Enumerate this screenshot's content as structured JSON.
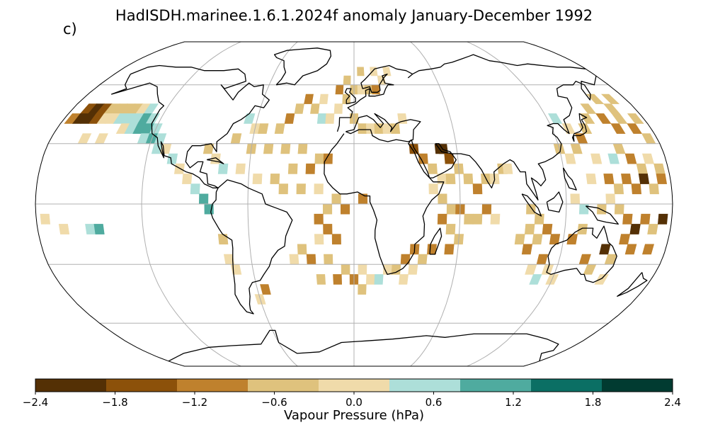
{
  "title": "HadISDH.marinee.1.6.1.2024f anomaly January-December 1992",
  "panel_label": "c)",
  "map": {
    "projection": "Robinson",
    "graticule_longitudes": [
      -180,
      -120,
      -60,
      0,
      60,
      120,
      180
    ],
    "graticule_latitudes": [
      -90,
      -60,
      -30,
      0,
      30,
      60,
      90
    ],
    "grid_cell_deg": 5,
    "cells": [
      [
        -170,
        47.5,
        -1.6
      ],
      [
        -165,
        47.5,
        -1.9
      ],
      [
        -160,
        47.5,
        -1.6
      ],
      [
        -155,
        47.5,
        -0.4
      ],
      [
        -150,
        47.5,
        -0.4
      ],
      [
        -145,
        47.5,
        -0.4
      ],
      [
        -140,
        47.5,
        -0.4
      ],
      [
        -135,
        47.5,
        0.4
      ],
      [
        -130,
        47.5,
        0.8
      ],
      [
        -175,
        42.5,
        -0.9
      ],
      [
        -170,
        42.5,
        -1.9
      ],
      [
        -165,
        42.5,
        -1.9
      ],
      [
        -160,
        42.5,
        -1.4
      ],
      [
        -155,
        42.5,
        0.4
      ],
      [
        -150,
        42.5,
        0.4
      ],
      [
        -145,
        42.5,
        0.9
      ],
      [
        -140,
        42.5,
        1.0
      ],
      [
        -135,
        42.5,
        0.8
      ],
      [
        -130,
        42.5,
        1.3
      ],
      [
        -125,
        42.5,
        1.0
      ],
      [
        -140,
        37.5,
        0.4
      ],
      [
        -135,
        37.5,
        0.9
      ],
      [
        -130,
        37.5,
        1.4
      ],
      [
        -125,
        37.5,
        1.3
      ],
      [
        -120,
        37.5,
        0.9
      ],
      [
        -160,
        32.5,
        0.4
      ],
      [
        -150,
        32.5,
        0.4
      ],
      [
        -125,
        32.5,
        1.0
      ],
      [
        -120,
        32.5,
        1.4
      ],
      [
        -115,
        32.5,
        1.0
      ],
      [
        -115,
        27.5,
        0.8
      ],
      [
        -110,
        27.5,
        0.4
      ],
      [
        -105,
        22.5,
        0.9
      ],
      [
        -100,
        17.5,
        0.4
      ],
      [
        -95,
        12.5,
        0.4
      ],
      [
        -90,
        7.5,
        0.9
      ],
      [
        -85,
        2.5,
        1.3
      ],
      [
        -82,
        -2.5,
        1.4
      ],
      [
        -175,
        -7.5,
        0.4
      ],
      [
        -165,
        -12.5,
        0.4
      ],
      [
        -150,
        -12.5,
        0.9
      ],
      [
        -145,
        -12.5,
        1.3
      ],
      [
        -75,
        -17.5,
        -0.4
      ],
      [
        -73,
        -27.5,
        0.4
      ],
      [
        -70,
        -32.5,
        0.4
      ],
      [
        -60,
        -47.5,
        0.4
      ],
      [
        -55,
        -42.5,
        -0.9
      ],
      [
        -65,
        42.5,
        0.8
      ],
      [
        -60,
        37.5,
        0.4
      ],
      [
        -55,
        37.5,
        -0.4
      ],
      [
        -45,
        37.5,
        -0.4
      ],
      [
        -40,
        42.5,
        -0.9
      ],
      [
        -35,
        47.5,
        -0.4
      ],
      [
        -30,
        52.5,
        -0.9
      ],
      [
        -25,
        47.5,
        -0.4
      ],
      [
        -20,
        52.5,
        0.4
      ],
      [
        -20,
        42.5,
        0.8
      ],
      [
        -15,
        42.5,
        0.4
      ],
      [
        -10,
        47.5,
        0.4
      ],
      [
        -10,
        57.5,
        -0.9
      ],
      [
        -5,
        52.5,
        -0.4
      ],
      [
        -70,
        32.5,
        -0.4
      ],
      [
        -60,
        27.5,
        -0.4
      ],
      [
        -50,
        27.5,
        -0.4
      ],
      [
        -40,
        27.5,
        -0.4
      ],
      [
        -30,
        27.5,
        -0.4
      ],
      [
        -20,
        22.5,
        -0.4
      ],
      [
        -15,
        22.5,
        -1.0
      ],
      [
        -25,
        17.5,
        -1.0
      ],
      [
        -35,
        17.5,
        -0.4
      ],
      [
        -45,
        12.5,
        -0.4
      ],
      [
        -55,
        12.5,
        0.4
      ],
      [
        -65,
        17.5,
        0.4
      ],
      [
        -75,
        17.5,
        0.8
      ],
      [
        -80,
        22.5,
        0.4
      ],
      [
        -85,
        27.5,
        -0.4
      ],
      [
        -40,
        7.5,
        -0.4
      ],
      [
        -30,
        7.5,
        -0.4
      ],
      [
        -20,
        7.5,
        0.4
      ],
      [
        -10,
        2.5,
        -0.4
      ],
      [
        -5,
        -2.5,
        -1.0
      ],
      [
        5,
        2.5,
        -1.0
      ],
      [
        -15,
        -2.5,
        -0.4
      ],
      [
        -20,
        -7.5,
        -1.0
      ],
      [
        -15,
        -12.5,
        -1.0
      ],
      [
        -10,
        -17.5,
        -1.0
      ],
      [
        -20,
        -17.5,
        0.4
      ],
      [
        -30,
        -22.5,
        -0.4
      ],
      [
        -35,
        -27.5,
        0.4
      ],
      [
        -25,
        -27.5,
        -1.0
      ],
      [
        -15,
        -27.5,
        -0.4
      ],
      [
        -5,
        -32.5,
        -0.4
      ],
      [
        0,
        -37.5,
        -1.0
      ],
      [
        5,
        -32.5,
        0.4
      ],
      [
        -20,
        -37.5,
        -0.4
      ],
      [
        -10,
        -37.5,
        -1.0
      ],
      [
        10,
        -37.5,
        0.4
      ],
      [
        15,
        -37.5,
        0.8
      ],
      [
        20,
        -32.5,
        0.4
      ],
      [
        25,
        -32.5,
        -0.4
      ],
      [
        30,
        -27.5,
        -1.0
      ],
      [
        35,
        -22.5,
        -1.0
      ],
      [
        30,
        -37.5,
        0.4
      ],
      [
        5,
        -42.5,
        -0.4
      ],
      [
        0,
        57.5,
        -0.4
      ],
      [
        5,
        57.5,
        0.4
      ],
      [
        10,
        57.5,
        -0.4
      ],
      [
        15,
        57.5,
        -1.0
      ],
      [
        20,
        62.5,
        0.4
      ],
      [
        15,
        67.5,
        0.4
      ],
      [
        5,
        67.5,
        -0.4
      ],
      [
        -5,
        62.5,
        -0.4
      ],
      [
        25,
        67.5,
        0.4
      ],
      [
        0,
        42.5,
        -0.4
      ],
      [
        5,
        37.5,
        -0.4
      ],
      [
        10,
        37.5,
        0.4
      ],
      [
        15,
        37.5,
        -0.4
      ],
      [
        20,
        37.5,
        0.4
      ],
      [
        25,
        37.5,
        -0.4
      ],
      [
        30,
        42.5,
        0.4
      ],
      [
        35,
        27.5,
        -1.4
      ],
      [
        40,
        22.5,
        -1.0
      ],
      [
        45,
        17.5,
        -0.4
      ],
      [
        50,
        12.5,
        0.4
      ],
      [
        55,
        12.5,
        -0.4
      ],
      [
        50,
        27.5,
        -1.9
      ],
      [
        52,
        27.5,
        -2.1
      ],
      [
        55,
        22.5,
        -1.4
      ],
      [
        60,
        17.5,
        -0.4
      ],
      [
        65,
        12.5,
        -0.4
      ],
      [
        70,
        7.5,
        -1.0
      ],
      [
        75,
        12.5,
        -0.4
      ],
      [
        80,
        12.5,
        0.4
      ],
      [
        85,
        17.5,
        -0.4
      ],
      [
        88,
        17.5,
        0.4
      ],
      [
        45,
        7.5,
        0.4
      ],
      [
        50,
        2.5,
        -0.4
      ],
      [
        55,
        -2.5,
        -0.4
      ],
      [
        50,
        -7.5,
        -1.0
      ],
      [
        55,
        -12.5,
        -0.4
      ],
      [
        60,
        -2.5,
        -1.0
      ],
      [
        65,
        -7.5,
        -0.4
      ],
      [
        70,
        -7.5,
        -0.4
      ],
      [
        75,
        -2.5,
        -1.0
      ],
      [
        80,
        -7.5,
        0.4
      ],
      [
        60,
        -17.5,
        -0.4
      ],
      [
        55,
        -22.5,
        -1.0
      ],
      [
        45,
        -22.5,
        -1.0
      ],
      [
        40,
        -27.5,
        -0.4
      ],
      [
        35,
        -32.5,
        0.4
      ],
      [
        100,
        -2.5,
        -0.4
      ],
      [
        105,
        -7.5,
        -0.4
      ],
      [
        110,
        -12.5,
        -1.0
      ],
      [
        105,
        -17.5,
        -0.4
      ],
      [
        115,
        -17.5,
        -1.0
      ],
      [
        100,
        -12.5,
        -0.4
      ],
      [
        95,
        -17.5,
        -0.4
      ],
      [
        100,
        -22.5,
        -1.0
      ],
      [
        110,
        -27.5,
        -1.0
      ],
      [
        105,
        -32.5,
        0.4
      ],
      [
        115,
        -32.5,
        0.4
      ],
      [
        110,
        -37.5,
        0.8
      ],
      [
        120,
        -37.5,
        0.4
      ],
      [
        125,
        42.5,
        1.0
      ],
      [
        130,
        37.5,
        0.4
      ],
      [
        135,
        32.5,
        -1.0
      ],
      [
        140,
        37.5,
        -0.4
      ],
      [
        145,
        42.5,
        -0.4
      ],
      [
        150,
        47.5,
        -0.4
      ],
      [
        155,
        42.5,
        -1.0
      ],
      [
        160,
        37.5,
        -1.0
      ],
      [
        165,
        42.5,
        -0.4
      ],
      [
        170,
        37.5,
        -1.0
      ],
      [
        175,
        32.5,
        -0.4
      ],
      [
        175,
        42.5,
        -0.4
      ],
      [
        165,
        47.5,
        -0.4
      ],
      [
        160,
        52.5,
        -0.4
      ],
      [
        170,
        52.5,
        -0.4
      ],
      [
        120,
        27.5,
        -0.4
      ],
      [
        125,
        22.5,
        0.4
      ],
      [
        130,
        27.5,
        -0.4
      ],
      [
        140,
        22.5,
        0.4
      ],
      [
        150,
        22.5,
        1.0
      ],
      [
        155,
        27.5,
        -0.4
      ],
      [
        160,
        22.5,
        -1.0
      ],
      [
        165,
        17.5,
        -0.4
      ],
      [
        170,
        22.5,
        0.4
      ],
      [
        175,
        17.5,
        -0.4
      ],
      [
        135,
        12.5,
        0.4
      ],
      [
        145,
        12.5,
        -1.0
      ],
      [
        150,
        7.5,
        -0.4
      ],
      [
        155,
        12.5,
        -1.0
      ],
      [
        160,
        7.5,
        -1.0
      ],
      [
        165,
        12.5,
        -1.9
      ],
      [
        170,
        7.5,
        -0.4
      ],
      [
        175,
        12.5,
        -1.0
      ],
      [
        125,
        2.5,
        0.4
      ],
      [
        130,
        -2.5,
        0.9
      ],
      [
        140,
        -2.5,
        -0.4
      ],
      [
        145,
        2.5,
        0.4
      ],
      [
        150,
        -2.5,
        -0.4
      ],
      [
        155,
        -7.5,
        -1.0
      ],
      [
        160,
        -12.5,
        -1.9
      ],
      [
        165,
        -7.5,
        -1.0
      ],
      [
        170,
        -12.5,
        -0.4
      ],
      [
        175,
        -7.5,
        -1.9
      ],
      [
        155,
        -17.5,
        -1.0
      ],
      [
        160,
        -22.5,
        -1.0
      ],
      [
        170,
        -22.5,
        -1.0
      ],
      [
        150,
        -27.5,
        -0.4
      ],
      [
        140,
        -32.5,
        -0.4
      ],
      [
        145,
        -22.5,
        -1.9
      ],
      [
        130,
        -12.5,
        -0.4
      ],
      [
        125,
        -17.5,
        -1.0
      ],
      [
        135,
        -27.5,
        -1.0
      ],
      [
        150,
        -37.5,
        0.4
      ]
    ]
  },
  "colorbar": {
    "label": "Vapour Pressure (hPa)",
    "ticks": [
      "−2.4",
      "−1.8",
      "−1.2",
      "−0.6",
      "0.0",
      "0.6",
      "1.2",
      "1.8",
      "2.4"
    ],
    "bounds": [
      -2.4,
      -1.8,
      -1.2,
      -0.6,
      0.0,
      0.6,
      1.2,
      1.8,
      2.4
    ],
    "colors": [
      "#543005",
      "#8c510a",
      "#bf812d",
      "#dfc27d",
      "#f0dbaa",
      "#addfd9",
      "#4fab9f",
      "#0b6f64",
      "#013b31"
    ]
  },
  "colors": {
    "coastline": "#000000",
    "graticule": "#b0b0b0",
    "outline": "#000000"
  }
}
